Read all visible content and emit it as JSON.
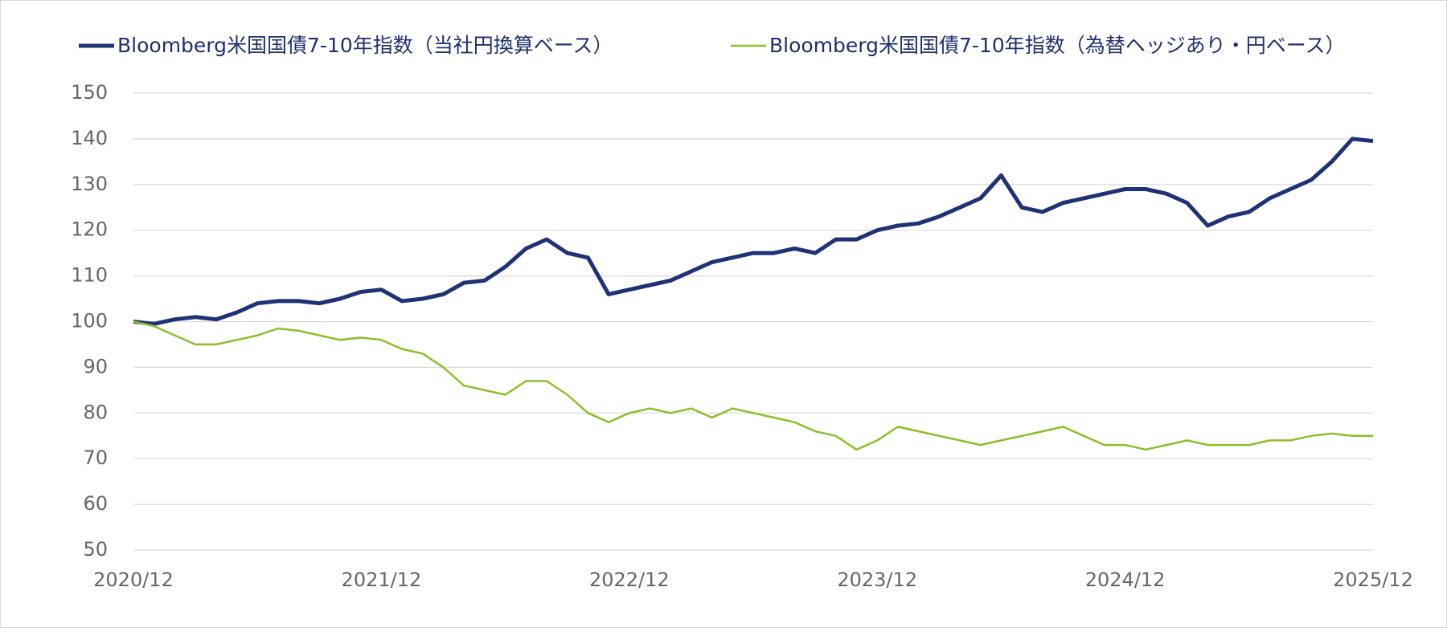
{
  "chart_data": {
    "type": "line",
    "categories": [
      "2020/12",
      null,
      null,
      null,
      null,
      null,
      null,
      null,
      null,
      null,
      null,
      null,
      "2021/12",
      null,
      null,
      null,
      null,
      null,
      null,
      null,
      null,
      null,
      null,
      null,
      "2022/12",
      null,
      null,
      null,
      null,
      null,
      null,
      null,
      null,
      null,
      null,
      null,
      "2023/12",
      null,
      null,
      null,
      null,
      null,
      null,
      null,
      null,
      null,
      null,
      null,
      "2024/12",
      null,
      null,
      null,
      null,
      null,
      null,
      null,
      null,
      null,
      null,
      null,
      "2025/12"
    ],
    "series": [
      {
        "name": "Bloomberg米国国債7-10年指数（当社円換算ベース）",
        "color": "#1f3275",
        "width": 5,
        "values": [
          100,
          99.5,
          100.5,
          101,
          100.5,
          102,
          104,
          104.5,
          104.5,
          104,
          105,
          106.5,
          107,
          104.5,
          105,
          106,
          108.5,
          109,
          112,
          116,
          118,
          115,
          114,
          106,
          107,
          108,
          109,
          111,
          113,
          114,
          115,
          115,
          116,
          115,
          118,
          118,
          120,
          121,
          121.5,
          123,
          125,
          127,
          132,
          125,
          124,
          126,
          127,
          128,
          129,
          129,
          128,
          126,
          121,
          123,
          124,
          127,
          129,
          131,
          135,
          140,
          139.5
        ]
      },
      {
        "name": "Bloomberg米国国債7-10年指数（為替ヘッジあり・円ベース）",
        "color": "#8dbf2a",
        "width": 2.5,
        "values": [
          100,
          99,
          97,
          95,
          95,
          96,
          97,
          98.5,
          98,
          97,
          96,
          96.5,
          96,
          94,
          93,
          90,
          86,
          85,
          84,
          87,
          87,
          84,
          80,
          78,
          80,
          81,
          80,
          81,
          79,
          81,
          80,
          79,
          78,
          76,
          75,
          72,
          74,
          77,
          76,
          75,
          74,
          73,
          74,
          75,
          76,
          77,
          75,
          73,
          73,
          72,
          73,
          74,
          73,
          73,
          73,
          74,
          74,
          75,
          75.5,
          75,
          75
        ]
      }
    ],
    "ylim": [
      50,
      150
    ],
    "yticks": [
      50,
      60,
      70,
      80,
      90,
      100,
      110,
      120,
      130,
      140,
      150
    ],
    "grid": true
  }
}
